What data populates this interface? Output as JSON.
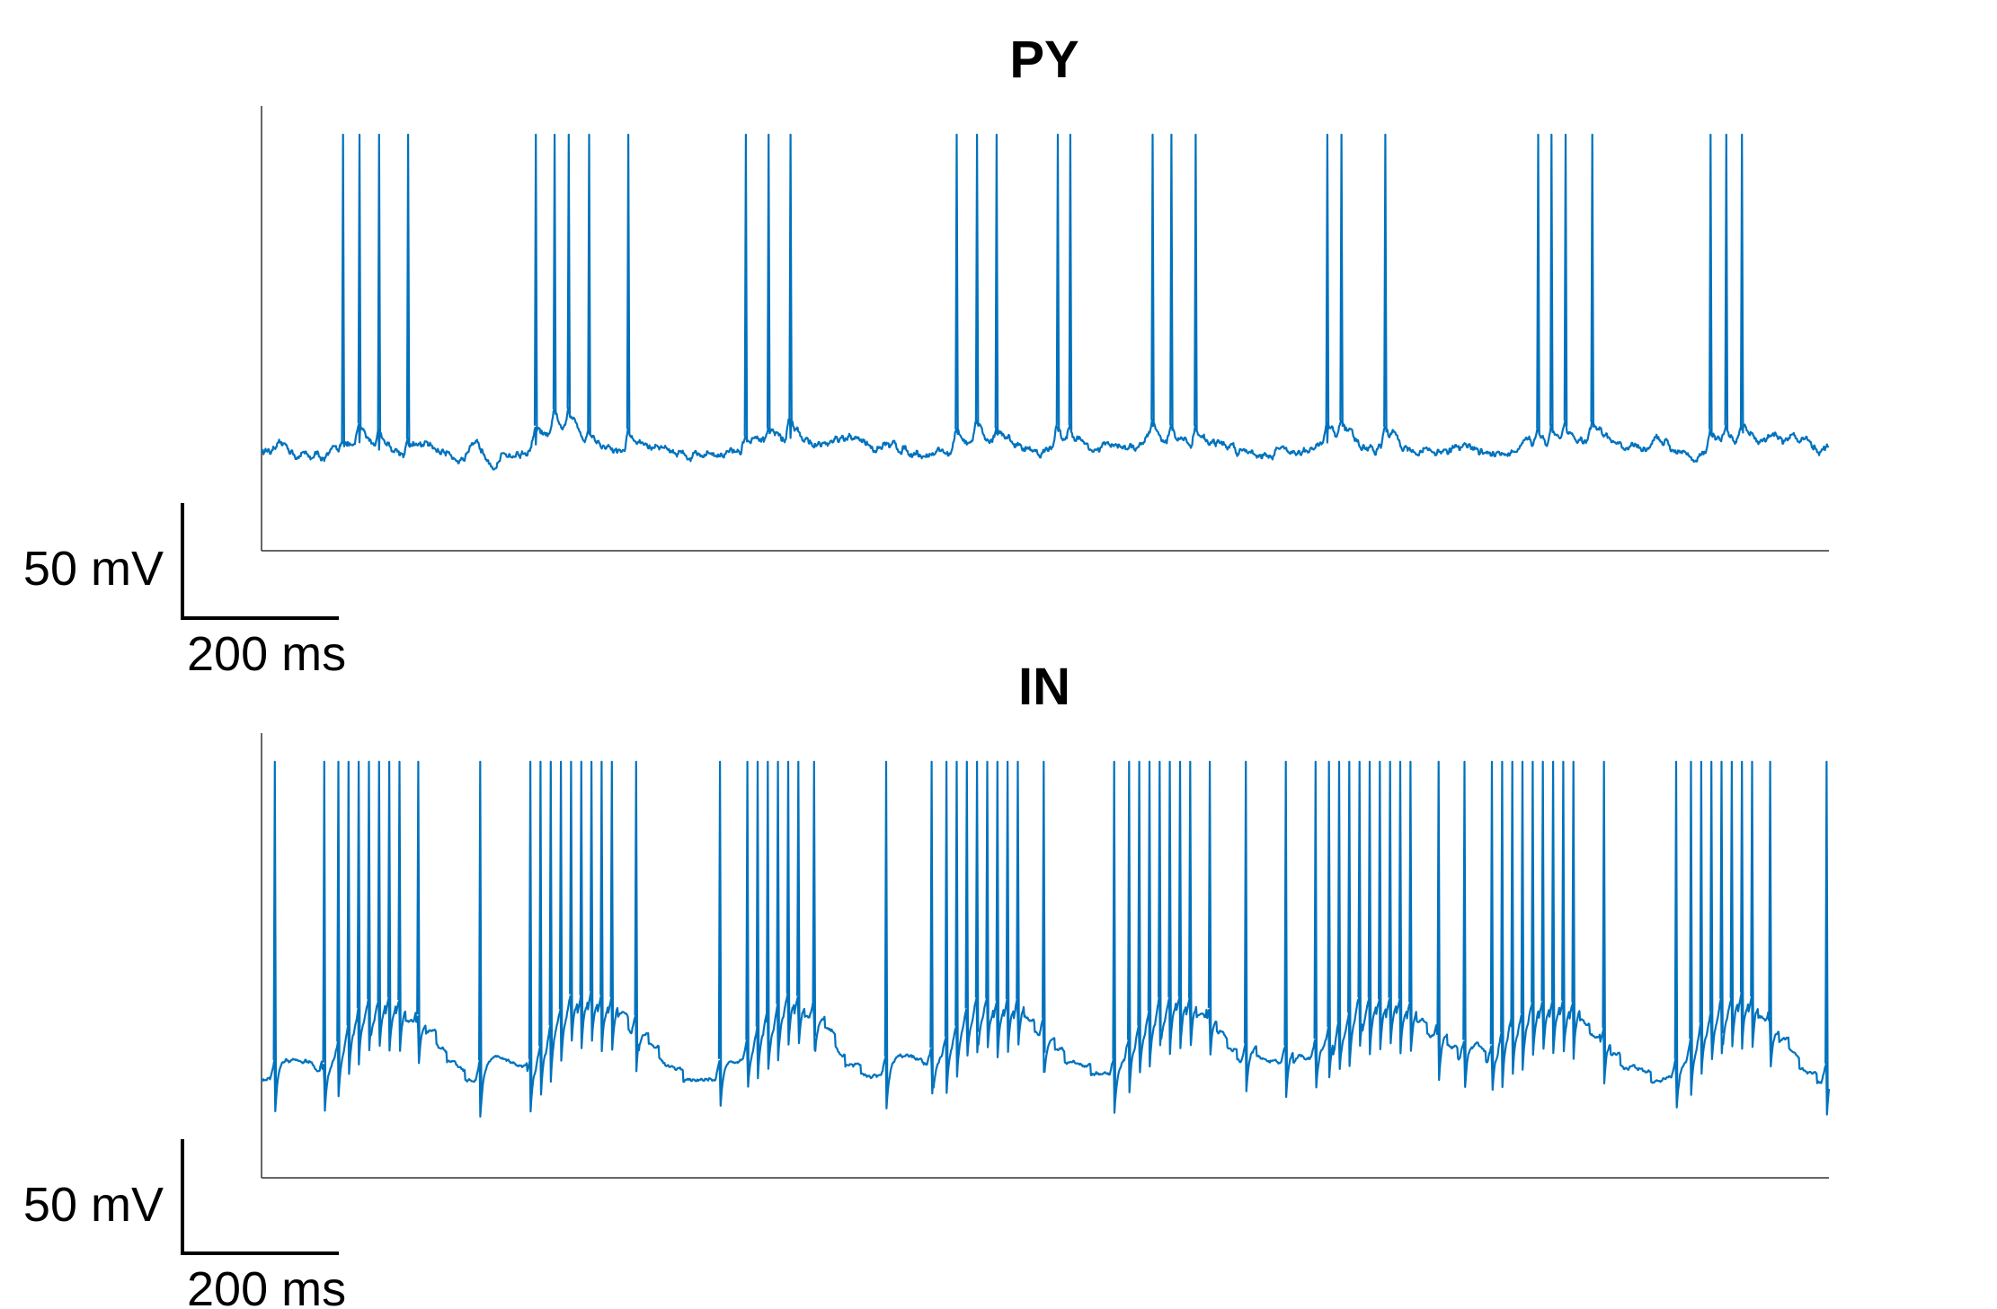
{
  "colors": {
    "trace": "#0072BD",
    "axis": "#333333",
    "scale_bar": "#000000"
  },
  "chart_data": [
    {
      "type": "line",
      "title": "PY",
      "xlabel": "",
      "ylabel": "",
      "unit_x": "ms",
      "unit_y": "mV",
      "xlim": [
        0,
        2000
      ],
      "ylim": [
        -105,
        50
      ],
      "scale_bar": {
        "x_value": 200,
        "x_label": "200 ms",
        "y_value": 50,
        "y_label": "50 mV"
      },
      "resting_potential": -70,
      "spike_peak": 40,
      "spike_times": [
        104,
        125,
        150,
        187,
        350,
        374,
        392,
        418,
        468,
        618,
        647,
        675,
        887,
        913,
        938,
        1016,
        1032,
        1137,
        1161,
        1192,
        1360,
        1378,
        1434,
        1629,
        1646,
        1664,
        1698,
        1849,
        1869,
        1889
      ]
    },
    {
      "type": "line",
      "title": "IN",
      "xlabel": "",
      "ylabel": "",
      "unit_x": "ms",
      "unit_y": "mV",
      "xlim": [
        0,
        2000
      ],
      "ylim": [
        -105,
        50
      ],
      "scale_bar": {
        "x_value": 200,
        "x_label": "200 ms",
        "y_value": 50,
        "y_label": "50 mV"
      },
      "resting_potential": -70,
      "spike_peak": 40,
      "spike_times": [
        17,
        80,
        98,
        111,
        124,
        137,
        150,
        163,
        176,
        200,
        279,
        343,
        356,
        369,
        382,
        395,
        408,
        421,
        434,
        447,
        478,
        585,
        620,
        633,
        646,
        659,
        672,
        685,
        705,
        797,
        855,
        874,
        887,
        900,
        913,
        926,
        939,
        952,
        965,
        998,
        1088,
        1107,
        1120,
        1133,
        1146,
        1159,
        1172,
        1185,
        1210,
        1256,
        1307,
        1345,
        1362,
        1375,
        1388,
        1401,
        1414,
        1427,
        1440,
        1453,
        1466,
        1502,
        1535,
        1570,
        1583,
        1596,
        1609,
        1622,
        1635,
        1648,
        1661,
        1674,
        1713,
        1805,
        1824,
        1837,
        1850,
        1863,
        1876,
        1889,
        1902,
        1925,
        1997
      ]
    }
  ]
}
